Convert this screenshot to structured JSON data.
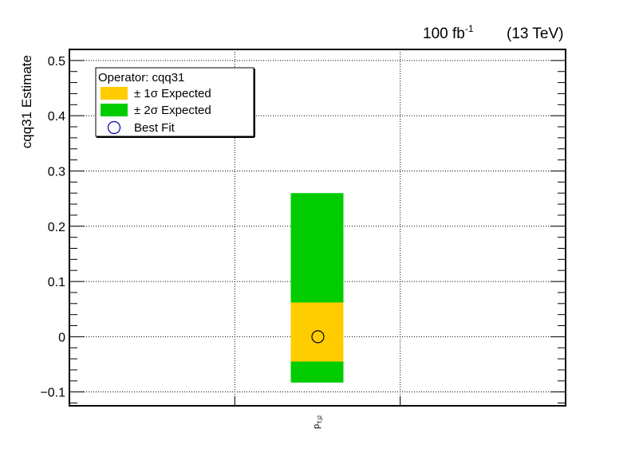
{
  "header": {
    "lumi_value": "100 fb",
    "lumi_exponent": "-1",
    "energy": "(13 TeV)"
  },
  "chart_data": {
    "type": "bar",
    "ylabel": "cqq31 Estimate",
    "ylim": [
      -0.125,
      0.52
    ],
    "yticks": [
      -0.1,
      0,
      0.1,
      0.2,
      0.3,
      0.4,
      0.5
    ],
    "ytick_labels": [
      "−0.1",
      "0",
      "0.1",
      "0.2",
      "0.3",
      "0.4",
      "0.5"
    ],
    "grid": true,
    "categories": [
      "p_T,j2"
    ],
    "category_label": {
      "main": "p",
      "sub": "T,j2"
    },
    "legend": {
      "placement": "top-left",
      "title": "Operator: cqq31",
      "entries": [
        {
          "label": "± 1σ Expected",
          "kind": "box",
          "color": "#ffcc00"
        },
        {
          "label": "± 2σ Expected",
          "kind": "box",
          "color": "#00cc00"
        },
        {
          "label": "Best Fit",
          "kind": "circle",
          "color": "#0000aa"
        }
      ]
    },
    "series": [
      {
        "name": "± 2σ Expected",
        "low": -0.083,
        "high": 0.26,
        "color": "#00cc00"
      },
      {
        "name": "± 1σ Expected",
        "low": -0.045,
        "high": 0.062,
        "color": "#ffcc00"
      },
      {
        "name": "Best Fit",
        "value": 0.0,
        "color": "#000000"
      }
    ]
  }
}
